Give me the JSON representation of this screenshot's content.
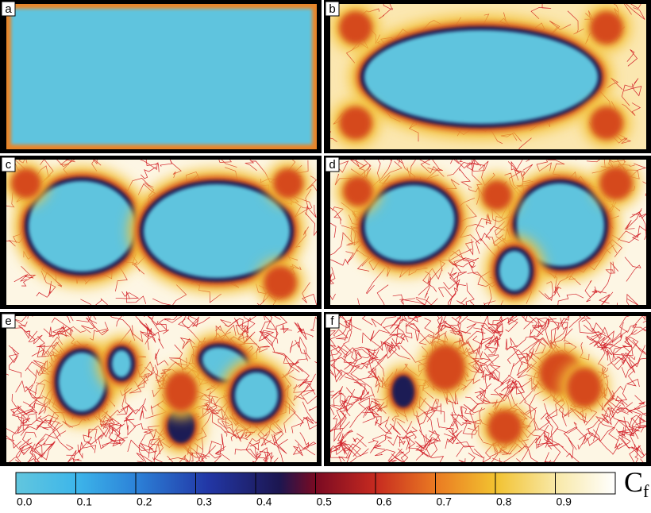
{
  "panels": [
    "a",
    "b",
    "c",
    "d",
    "e",
    "f"
  ],
  "colorbar": {
    "label": "C",
    "label_sub": "f",
    "lim": [
      0,
      1
    ],
    "ticks": [
      {
        "value": 0,
        "label": "0.0"
      },
      0.1,
      0.2,
      0.3,
      0.4,
      0.5,
      0.6,
      0.7,
      0.8,
      0.9
    ]
  }
}
